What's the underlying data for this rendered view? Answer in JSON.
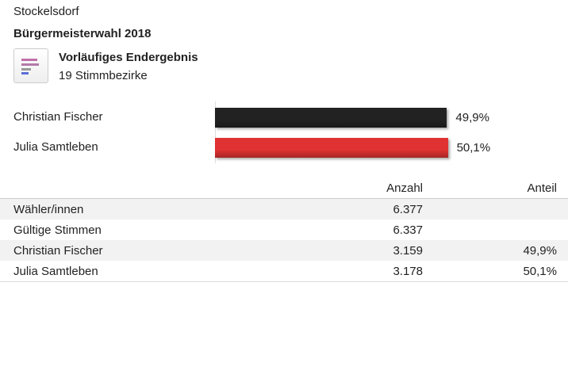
{
  "header": {
    "place": "Stockelsdorf",
    "title": "Bürgermeisterwahl 2018",
    "status": "Vorläufiges Endergebnis",
    "districts": "19 Stimmbezirke"
  },
  "chart_data": {
    "type": "bar",
    "orientation": "horizontal",
    "categories": [
      "Christian Fischer",
      "Julia Samtleben"
    ],
    "values": [
      49.9,
      50.1
    ],
    "value_labels": [
      "49,9%",
      "50,1%"
    ],
    "colors": [
      "#222222",
      "#e03232"
    ]
  },
  "table": {
    "columns": [
      "Anzahl",
      "Anteil"
    ],
    "rows": [
      [
        "Wähler/innen",
        "6.377"
      ],
      [
        "Gültige Stimmen",
        "6.337"
      ],
      [
        "Christian Fischer",
        "3.159",
        "49,9%"
      ],
      [
        "Julia Samtleben",
        "3.178",
        "50,1%"
      ]
    ]
  }
}
